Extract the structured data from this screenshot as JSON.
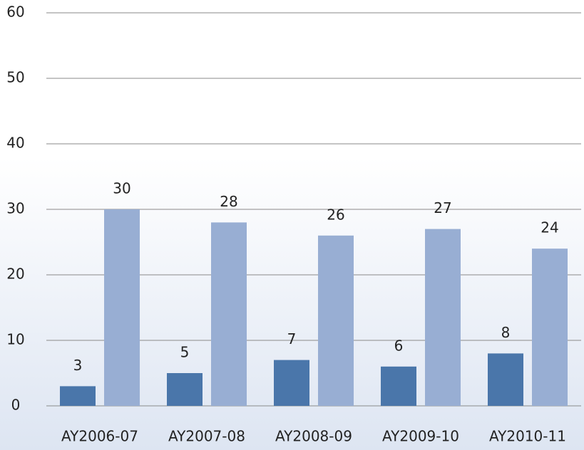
{
  "chart_data": {
    "type": "bar",
    "categories": [
      "AY2006-07",
      "AY2007-08",
      "AY2008-09",
      "AY2009-10",
      "AY2010-11"
    ],
    "series": [
      {
        "color": "#4a76aa",
        "values": [
          3,
          5,
          7,
          6,
          8
        ]
      },
      {
        "color": "#98aed3",
        "values": [
          30,
          28,
          26,
          27,
          24
        ]
      }
    ],
    "ylim": [
      0,
      60
    ],
    "yticks": [
      0,
      10,
      20,
      30,
      40,
      50,
      60
    ],
    "grid": true
  }
}
